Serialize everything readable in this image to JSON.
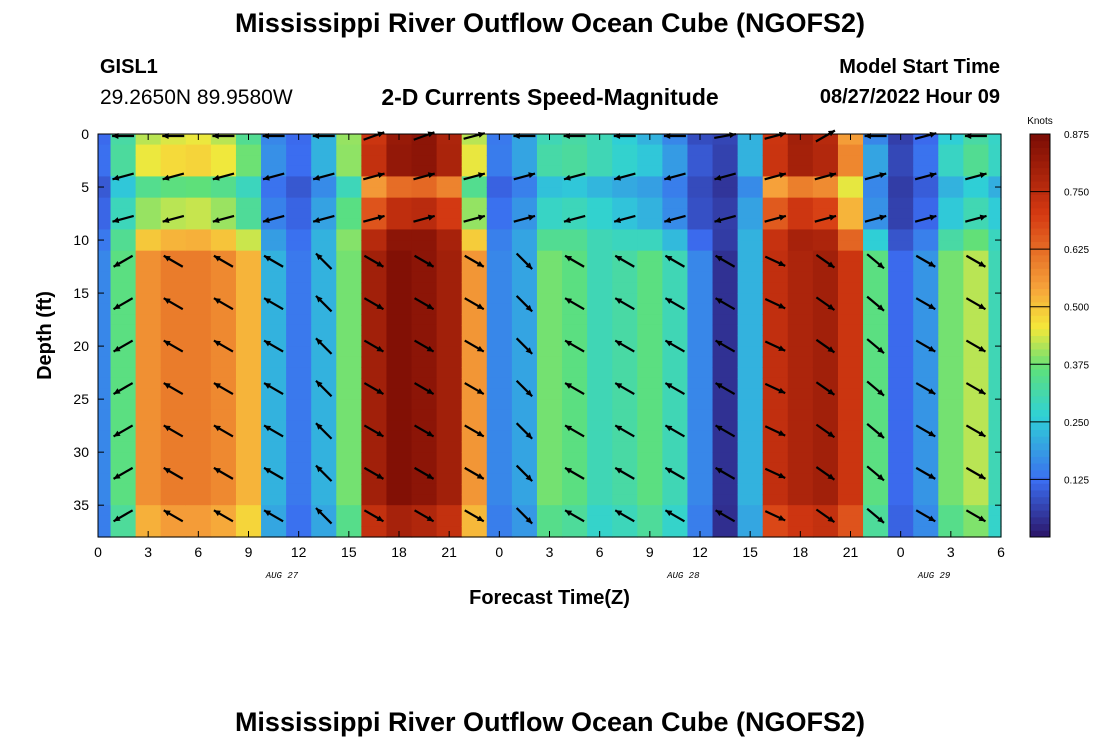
{
  "header": {
    "title": "Mississippi River Outflow Ocean Cube (NGOFS2)",
    "station_id": "GISL1",
    "station_coords": "29.2650N  89.9580W",
    "subtitle": "2-D Currents Speed-Magnitude",
    "start_label": "Model Start Time",
    "start_value": "08/27/2022 Hour 09"
  },
  "footer": {
    "title": "Mississippi River Outflow Ocean Cube (NGOFS2)"
  },
  "chart_data": {
    "type": "heatmap",
    "title": "2-D Currents Speed-Magnitude",
    "xlabel": "Forecast Time(Z)",
    "ylabel": "Depth (ft)",
    "x_tick_labels": [
      "0",
      "3",
      "6",
      "9",
      "12",
      "15",
      "18",
      "21",
      "0",
      "3",
      "6",
      "9",
      "12",
      "15",
      "18",
      "21",
      "0",
      "3",
      "6"
    ],
    "date_labels": [
      {
        "label": "AUG 27",
        "hours_from_start": 11
      },
      {
        "label": "AUG 28",
        "hours_from_start": 35
      },
      {
        "label": "AUG 29",
        "hours_from_start": 50
      }
    ],
    "x_range_hours": [
      0,
      54
    ],
    "y_ticks": [
      0,
      5,
      10,
      15,
      20,
      25,
      30,
      35
    ],
    "ylim": [
      0,
      38
    ],
    "y_inverted": true,
    "colorbar": {
      "label": "Knots",
      "range": [
        0,
        0.875
      ],
      "tick_values": [
        0.125,
        0.25,
        0.375,
        0.5,
        0.625,
        0.75,
        0.875
      ],
      "tick_labels": [
        "0.125",
        "0.250",
        "0.375",
        "0.500",
        "0.625",
        "0.750",
        "0.875"
      ]
    },
    "colors": {
      "low": "#2b1466",
      "blue": "#3b6cf0",
      "cyan": "#2fd1d6",
      "green": "#5ee07a",
      "yellow": "#f5e83a",
      "orange": "#f6a23a",
      "red": "#d63a12",
      "high": "#7a0c04"
    },
    "time_hours": [
      0,
      1.5,
      3,
      4.5,
      6,
      7.5,
      9,
      10.5,
      12,
      13.5,
      15,
      16.5,
      18,
      19.5,
      21,
      22.5,
      24,
      25.5,
      27,
      28.5,
      30,
      31.5,
      33,
      34.5,
      36,
      37.5,
      39,
      40.5,
      42,
      43.5,
      45,
      46.5,
      48,
      49.5,
      51,
      52.5,
      54
    ],
    "surface_speed_knots": [
      0.12,
      0.32,
      0.42,
      0.44,
      0.45,
      0.42,
      0.34,
      0.16,
      0.12,
      0.22,
      0.4,
      0.72,
      0.82,
      0.84,
      0.78,
      0.42,
      0.14,
      0.2,
      0.3,
      0.32,
      0.3,
      0.26,
      0.22,
      0.16,
      0.08,
      0.07,
      0.22,
      0.72,
      0.8,
      0.76,
      0.55,
      0.16,
      0.06,
      0.12,
      0.26,
      0.32,
      0.28
    ],
    "subsurface_speed_knots": [
      0.16,
      0.36,
      0.57,
      0.6,
      0.6,
      0.58,
      0.52,
      0.22,
      0.14,
      0.22,
      0.38,
      0.8,
      0.86,
      0.84,
      0.8,
      0.56,
      0.16,
      0.2,
      0.38,
      0.36,
      0.3,
      0.32,
      0.36,
      0.3,
      0.16,
      0.04,
      0.22,
      0.74,
      0.78,
      0.8,
      0.72,
      0.36,
      0.12,
      0.18,
      0.38,
      0.42,
      0.3
    ],
    "depth_columns_ft": [
      0.5,
      1.5,
      2.5,
      3.5,
      4.5,
      5.5,
      6.5,
      7.5,
      8.5,
      9.5,
      10.5,
      11.5,
      12.5,
      13.5,
      14.5,
      15.5,
      16.5,
      17.5,
      18.5,
      19.5,
      20.5,
      21.5,
      22.5,
      23.5,
      24.5,
      25.5,
      26.5,
      27.5,
      28.5,
      29.5,
      30.5,
      31.5,
      32.5,
      33.5,
      34.5,
      35.5,
      36.5,
      37.5
    ],
    "vectors": {
      "depth_rows_ft": [
        0,
        4,
        8,
        12,
        16,
        20,
        24,
        28,
        32,
        36
      ],
      "time_hours": [
        1.5,
        4.5,
        7.5,
        10.5,
        13.5,
        16.5,
        19.5,
        22.5,
        25.5,
        28.5,
        31.5,
        34.5,
        37.5,
        40.5,
        43.5,
        46.5,
        49.5,
        52.5
      ],
      "column_directions_deg": [
        210,
        150,
        150,
        150,
        135,
        330,
        330,
        330,
        315,
        150,
        150,
        150,
        150,
        335,
        325,
        320,
        330,
        330
      ],
      "surface_directions_deg": [
        180,
        180,
        180,
        180,
        180,
        20,
        20,
        15,
        180,
        180,
        180,
        180,
        10,
        15,
        30,
        180,
        15,
        180
      ]
    }
  }
}
